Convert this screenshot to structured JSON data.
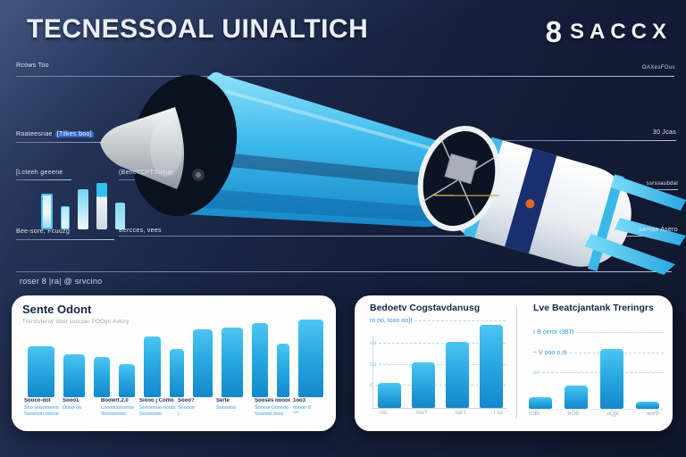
{
  "header": {
    "title": "TECNESSOAL UINALTICH",
    "brand_mark": "8",
    "brand_name": "SACCX",
    "brand_sub": "OAXesFOus",
    "top_left_label": "Rcows Too"
  },
  "callouts": {
    "fairing_label": "Roateesnae",
    "fairing_chip": "[Tilkes boo]",
    "left_upper": "[Lcteeh geeene",
    "mid_upper": "(BencTCPTSuoue",
    "left_lower": "Bee-sore, Fcuuzg",
    "mid_lower": "Bercces, vees",
    "right_top": "30 Jcas",
    "right_mid": "ssrssaubdal",
    "right_bottom": "samas Asero"
  },
  "section_caption": "roser 8 |ra| @ srvcino",
  "colors": {
    "background_top": "#36486d",
    "background_bottom": "#0f172c",
    "accent_cyan": "#3ab8ea",
    "bar_gradient_top": "#4cc5f2",
    "bar_gradient_bottom": "#1487cb",
    "panel": "#ffffff",
    "navy_text": "#16264c",
    "blue_label": "#2e9be6",
    "callout_chip": "#2f66cc"
  },
  "chart_data": [
    {
      "id": "mini-cylinder-chart",
      "type": "bar",
      "values": [
        40,
        26,
        45,
        52,
        30
      ],
      "widths": [
        13,
        10,
        12,
        12,
        11
      ],
      "title": "",
      "xlabel": "",
      "ylabel": "",
      "ylim": [
        0,
        55
      ]
    },
    {
      "id": "roadmap-chart",
      "type": "bar",
      "title": "Sente Odont",
      "subtitle": "Trerststeroy toter soscoer POOgn Aotcry",
      "values": [
        57,
        48,
        45,
        37,
        68,
        54,
        76,
        78,
        83,
        60,
        87
      ],
      "widths": [
        30,
        24,
        18,
        18,
        19,
        16,
        22,
        24,
        18,
        14,
        28
      ],
      "ylim": [
        0,
        100
      ],
      "categories": [
        {
          "label": "Sooco-dot",
          "subs": [
            "Soo ooooooooo",
            "Sooooon ooooo"
          ]
        },
        {
          "label": "Sooo1",
          "subs": [
            "Oooo oo"
          ]
        },
        {
          "label": "Boowrt.2.0",
          "subs": [
            "Looooooooooo",
            "Soooooooo"
          ]
        },
        {
          "label": "Siooo j Como",
          "subs": [
            "Sooooooo ooooo",
            "Sooooooo"
          ]
        },
        {
          "label": "Sooo?",
          "subs": [
            "Sooooo",
            "|"
          ]
        },
        {
          "label": "Serte",
          "subs": [
            "Soooooo"
          ]
        },
        {
          "label": "Sooses ooooo",
          "subs": [
            "Sooooi Oooooo",
            "Sooood ooos"
          ]
        },
        {
          "label": "1oo3",
          "subs": [
            "ooooo 8",
            "***"
          ]
        }
      ]
    },
    {
      "id": "cost-chart",
      "type": "bar",
      "title": "Bedoetv Cogstavdanusg",
      "annotation": "ro oo, tooo oo)t",
      "yticks": [
        "oo",
        "oo",
        "o"
      ],
      "categories": [
        "~oo.",
        "roo?",
        "oor f",
        "r oo"
      ],
      "values": [
        28,
        51,
        74,
        93
      ],
      "ylim": [
        0,
        100
      ]
    },
    {
      "id": "triggers-chart",
      "type": "bar",
      "title": "Lve Beatcjantank Treringrs",
      "annotations": [
        "r B oeror I3BTr",
        "~ V ooo o.ol",
        "oo"
      ],
      "categories": [
        "rOBt",
        "trOB",
        "oQj)t",
        "worB"
      ],
      "values": [
        13,
        26,
        67,
        8
      ],
      "ylim": [
        0,
        100
      ]
    }
  ]
}
